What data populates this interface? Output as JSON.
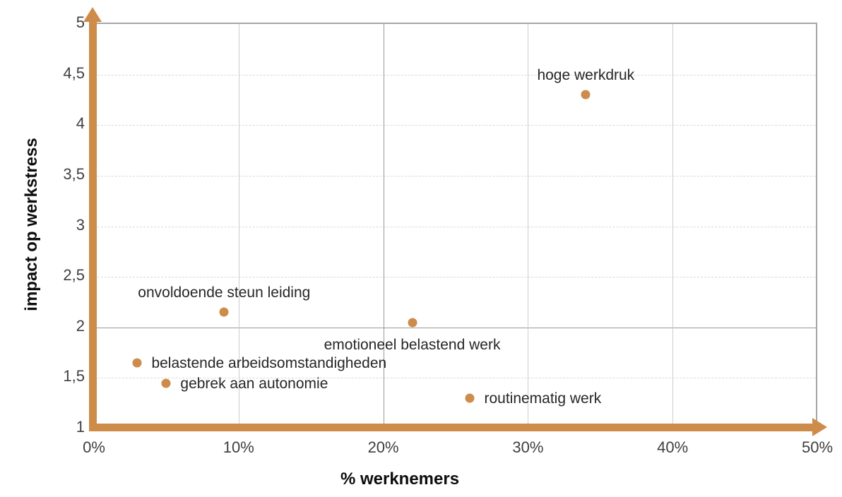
{
  "chart_data": {
    "type": "scatter",
    "xlabel": "% werknemers",
    "ylabel": "impact op werkstress",
    "xlim": [
      0,
      50
    ],
    "ylim": [
      1,
      5
    ],
    "grid": "on",
    "legend": "none",
    "x_ticks": [
      {
        "value": 0,
        "label": "0%"
      },
      {
        "value": 10,
        "label": "10%"
      },
      {
        "value": 20,
        "label": "20%"
      },
      {
        "value": 30,
        "label": "30%"
      },
      {
        "value": 40,
        "label": "40%"
      },
      {
        "value": 50,
        "label": "50%"
      }
    ],
    "y_ticks": [
      {
        "value": 1,
        "label": "1"
      },
      {
        "value": 1.5,
        "label": "1,5"
      },
      {
        "value": 2,
        "label": "2"
      },
      {
        "value": 2.5,
        "label": "2,5"
      },
      {
        "value": 3,
        "label": "3"
      },
      {
        "value": 3.5,
        "label": "3,5"
      },
      {
        "value": 4,
        "label": "4"
      },
      {
        "value": 4.5,
        "label": "4,5"
      },
      {
        "value": 5,
        "label": "5"
      }
    ],
    "divider_lines": {
      "x": 20,
      "y": 2
    },
    "points": [
      {
        "label": "hoge werkdruk",
        "x": 34,
        "y": 4.3,
        "label_position": "above"
      },
      {
        "label": "onvoldoende steun leiding",
        "x": 9,
        "y": 2.15,
        "label_position": "above"
      },
      {
        "label": "emotioneel belastend werk",
        "x": 22,
        "y": 2.05,
        "label_position": "below"
      },
      {
        "label": "belastende arbeidsomstandigheden",
        "x": 3,
        "y": 1.65,
        "label_position": "right"
      },
      {
        "label": "gebrek aan autonomie",
        "x": 5,
        "y": 1.45,
        "label_position": "right"
      },
      {
        "label": "routinematig werk",
        "x": 26,
        "y": 1.3,
        "label_position": "right"
      }
    ],
    "colors": {
      "marker": "#cd8c4a",
      "axis_arrow": "#cd8c4a",
      "plot_border": "#a6a6a6",
      "gridline_solid": "#cdcdcd",
      "gridline_dashed": "#d9d9d9",
      "divider_line": "#989898",
      "tick_text": "#3f3f3f",
      "label_text": "#262626",
      "title_text": "#0d0d0d"
    }
  }
}
